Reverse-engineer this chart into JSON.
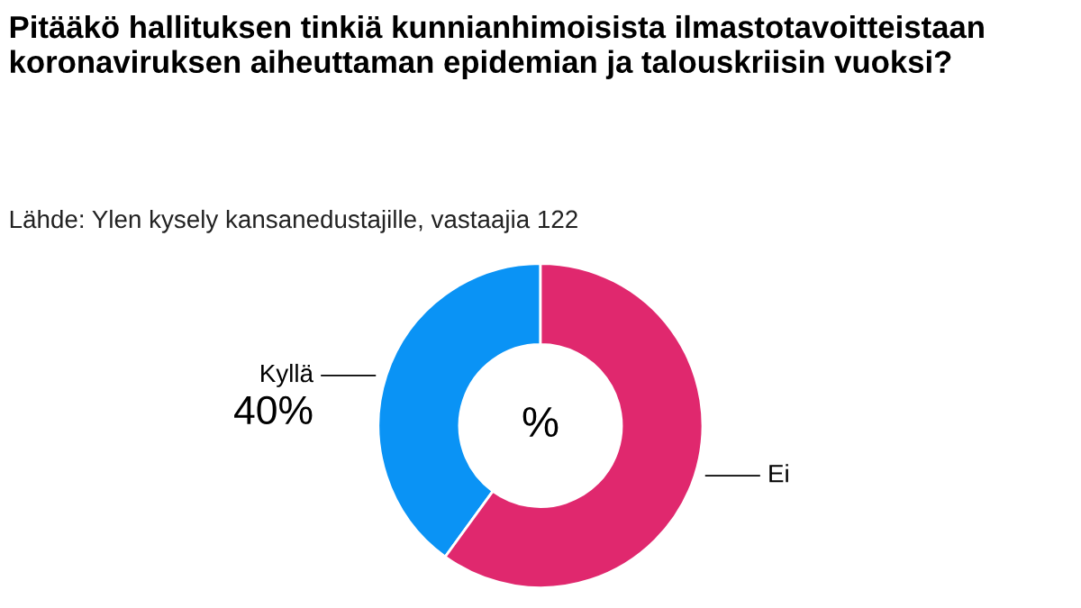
{
  "chart_data": {
    "type": "donut",
    "title": "Pitääkö hallituksen tinkiä kunnianhimoisista ilmastotavoitteistaan koronaviruksen aiheuttaman epidemian ja talouskriisin vuoksi?",
    "subtitle": "Lähde: Ylen kysely kansanedustajille, vastaajia 122",
    "categories": [
      "Kyllä",
      "Ei"
    ],
    "values": [
      40,
      60
    ],
    "colors": [
      "#0a93f5",
      "#e0286e"
    ],
    "value_labels": [
      "40%",
      null
    ],
    "annotations": [
      "%"
    ]
  }
}
